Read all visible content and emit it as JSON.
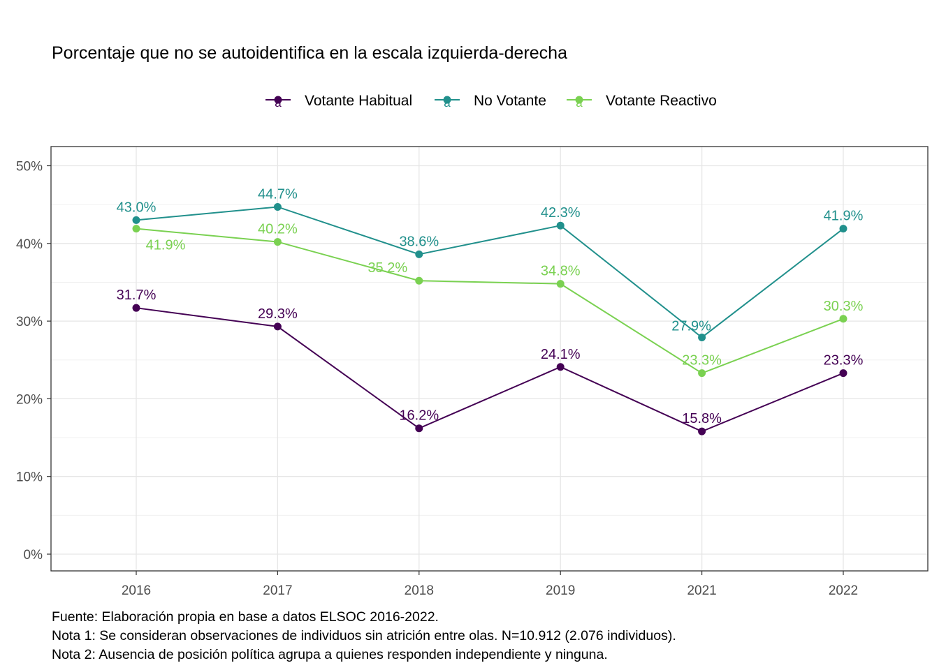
{
  "chart_data": {
    "type": "line",
    "title": "Porcentaje que no se autoidentifica en la escala izquierda-derecha",
    "categories": [
      "2016",
      "2017",
      "2018",
      "2019",
      "2021",
      "2022"
    ],
    "ylim": [
      0,
      50
    ],
    "y_ticks": [
      "0%",
      "10%",
      "20%",
      "30%",
      "40%",
      "50%"
    ],
    "grid": true,
    "legend_position": "top",
    "series": [
      {
        "name": "Votante Habitual",
        "color": "#440154",
        "values": [
          31.7,
          29.3,
          16.2,
          24.1,
          15.8,
          23.3
        ],
        "labels": [
          "31.7%",
          "29.3%",
          "16.2%",
          "24.1%",
          "15.8%",
          "23.3%"
        ]
      },
      {
        "name": "No Votante",
        "color": "#21908C",
        "values": [
          43.0,
          44.7,
          38.6,
          42.3,
          27.9,
          41.9
        ],
        "labels": [
          "43.0%",
          "44.7%",
          "38.6%",
          "42.3%",
          "27.9%",
          "41.9%"
        ]
      },
      {
        "name": "Votante Reactivo",
        "color": "#7AD151",
        "values": [
          41.9,
          40.2,
          35.2,
          34.8,
          23.3,
          30.3
        ],
        "labels": [
          "41.9%",
          "40.2%",
          "35.2%",
          "34.8%",
          "23.3%",
          "30.3%"
        ]
      }
    ],
    "legend_key_glyph": "a",
    "caption": [
      "Fuente: Elaboración propia en base a datos ELSOC 2016-2022.",
      "Nota 1: Se consideran observaciones de individuos sin atrición entre olas. N=10.912 (2.076 individuos).",
      "Nota 2: Ausencia de posición política agrupa a quienes responden independiente y ninguna."
    ]
  }
}
